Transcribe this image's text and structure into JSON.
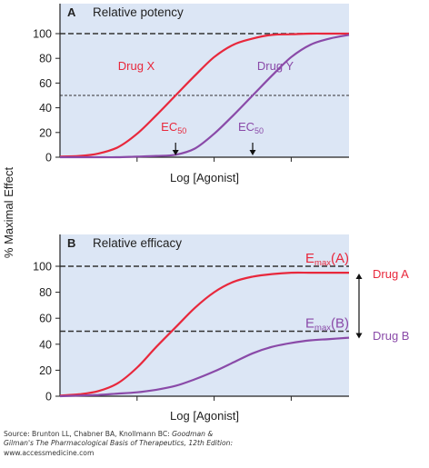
{
  "figure": {
    "ylabel": "% Maximal Effect",
    "source_line1": "Source: Brunton LL, Chabner BA, Knollmann BC: ",
    "source_title_a": "Goodman &",
    "source_title_b": "Gilman's The Pharmacological Basis of Therapeutics, 12th Edition:",
    "source_line3": "www.accessmedicine.com"
  },
  "colors": {
    "panel_bg": "#dce6f5",
    "drug_x": "#e8283c",
    "drug_y": "#8a4aa8",
    "drug_a": "#e8283c",
    "drug_b": "#8a4aa8"
  },
  "chart_data": [
    {
      "type": "line",
      "panel_letter": "A",
      "title": "Relative potency",
      "xlabel": "Log [Agonist]",
      "ylabel": "% Maximal Effect",
      "ylim": [
        0,
        110
      ],
      "yticks": [
        0,
        20,
        40,
        60,
        80,
        100
      ],
      "x_ticks": [
        1,
        2,
        3
      ],
      "x": [
        0,
        0.25,
        0.5,
        0.75,
        1.0,
        1.25,
        1.5,
        1.75,
        2.0,
        2.25,
        2.5,
        2.75,
        3.0,
        3.25,
        3.5,
        3.75
      ],
      "series": [
        {
          "name": "Drug X",
          "color": "#e8283c",
          "values": [
            0.5,
            1,
            3,
            8,
            19,
            34,
            50,
            66,
            81,
            91,
            96,
            99,
            99.5,
            100,
            100,
            100
          ]
        },
        {
          "name": "Drug Y",
          "color": "#8a4aa8",
          "values": [
            0,
            0,
            0,
            0,
            0.5,
            1,
            2,
            7,
            19,
            34,
            50,
            66,
            81,
            91,
            96,
            99
          ]
        }
      ],
      "reference_lines": [
        {
          "y": 100,
          "style": "dashed"
        },
        {
          "y": 50,
          "style": "dotted"
        }
      ],
      "annotations": [
        {
          "text_main": "EC",
          "text_sub": "50",
          "x": 1.5,
          "color": "#e8283c"
        },
        {
          "text_main": "EC",
          "text_sub": "50",
          "x": 2.5,
          "color": "#8a4aa8"
        }
      ]
    },
    {
      "type": "line",
      "panel_letter": "B",
      "title": "Relative efficacy",
      "xlabel": "Log [Agonist]",
      "ylabel": "% Maximal Effect",
      "ylim": [
        0,
        110
      ],
      "yticks": [
        0,
        20,
        40,
        60,
        80,
        100
      ],
      "x_ticks": [
        1,
        2,
        3
      ],
      "x": [
        0,
        0.25,
        0.5,
        0.75,
        1.0,
        1.25,
        1.5,
        1.75,
        2.0,
        2.25,
        2.5,
        2.75,
        3.0,
        3.25,
        3.5,
        3.75
      ],
      "series": [
        {
          "name": "Drug A",
          "color": "#e8283c",
          "values": [
            0.5,
            1.5,
            4,
            10,
            22,
            38,
            53,
            68,
            80,
            88,
            92,
            94,
            95,
            95,
            95,
            95
          ]
        },
        {
          "name": "Drug B",
          "color": "#8a4aa8",
          "values": [
            0,
            0.5,
            1,
            2,
            3,
            5,
            8,
            13,
            19,
            26,
            33,
            38,
            41,
            43,
            44,
            45
          ]
        }
      ],
      "reference_lines": [
        {
          "y": 100,
          "style": "dashed"
        },
        {
          "y": 50,
          "style": "dashed"
        }
      ],
      "emax_labels": [
        {
          "main": "E",
          "sub": "max",
          "tail": "(A)",
          "level": 100,
          "color": "#e8283c"
        },
        {
          "main": "E",
          "sub": "max",
          "tail": "(B)",
          "level": 50,
          "color": "#8a4aa8"
        }
      ]
    }
  ]
}
